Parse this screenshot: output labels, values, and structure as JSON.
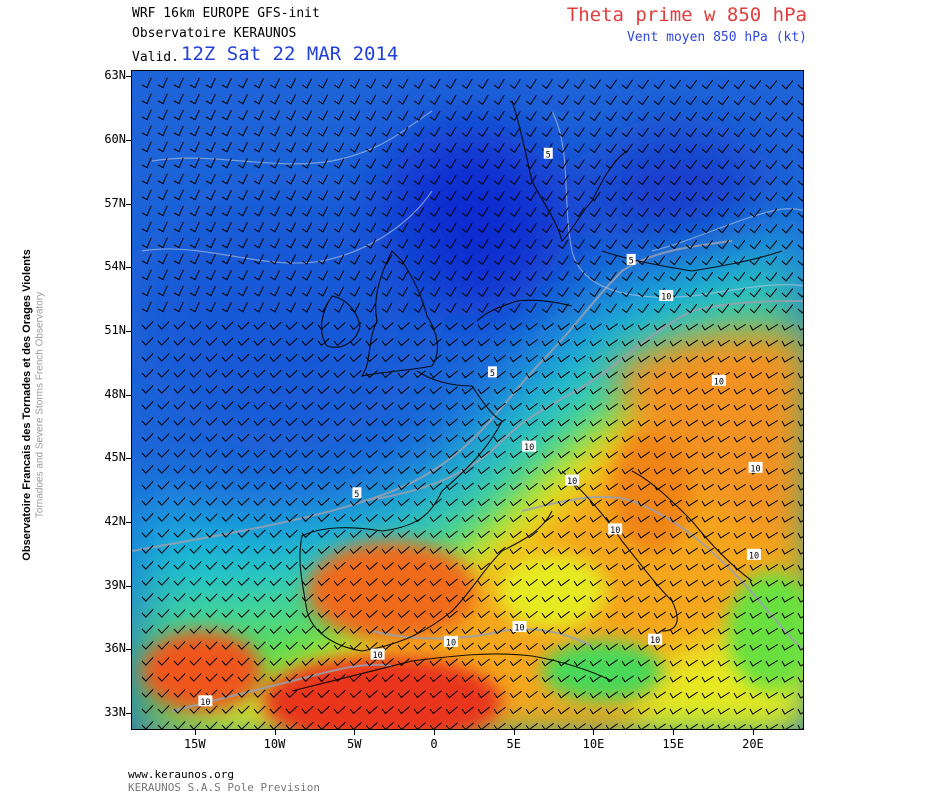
{
  "header": {
    "model": "WRF 16km EUROPE  GFS-init",
    "observatory": "Observatoire KERAUNOS",
    "valid_label": "Valid.",
    "valid_date": "12Z Sat 22 MAR 2014",
    "title": "Theta prime w 850 hPa",
    "subtitle": "Vent moyen 850 hPa (kt)"
  },
  "side_text": {
    "line1": "Observatoire Francais des Tornades et des Orages Violents",
    "line2": "Tornadoes and Severe Storms French Observatory"
  },
  "axes": {
    "lat_labels": [
      "63N",
      "60N",
      "57N",
      "54N",
      "51N",
      "48N",
      "45N",
      "42N",
      "39N",
      "36N",
      "33N"
    ],
    "lon_labels": [
      "15W",
      "10W",
      "5W",
      "0",
      "5E",
      "10E",
      "15E",
      "20E"
    ]
  },
  "contour_labels": [
    {
      "text": "5",
      "lon": 7.1,
      "lat": 59.4
    },
    {
      "text": "5",
      "lon": 12.3,
      "lat": 54.4
    },
    {
      "text": "5",
      "lon": 3.6,
      "lat": 49.1
    },
    {
      "text": "5",
      "lon": -4.9,
      "lat": 43.4
    },
    {
      "text": "10",
      "lon": 14.5,
      "lat": 52.7
    },
    {
      "text": "10",
      "lon": 17.8,
      "lat": 48.7
    },
    {
      "text": "10",
      "lon": 5.9,
      "lat": 45.6
    },
    {
      "text": "10",
      "lon": 20.1,
      "lat": 44.6
    },
    {
      "text": "10",
      "lon": 8.6,
      "lat": 44.0
    },
    {
      "text": "10",
      "lon": 11.3,
      "lat": 41.7
    },
    {
      "text": "10",
      "lon": 20.0,
      "lat": 40.5
    },
    {
      "text": "10",
      "lon": 5.3,
      "lat": 37.1
    },
    {
      "text": "10",
      "lon": 1.0,
      "lat": 36.4
    },
    {
      "text": "10",
      "lon": 13.8,
      "lat": 36.5
    },
    {
      "text": "10",
      "lon": -3.6,
      "lat": 35.8
    },
    {
      "text": "10",
      "lon": -14.4,
      "lat": 33.6
    }
  ],
  "colors": {
    "title": "#e23c3c",
    "subtitle": "#2f46e0",
    "valid_date": "#1f3fd8"
  },
  "footer": {
    "url": "www.keraunos.org",
    "company": "KERAUNOS S.A.S Pole Prevision"
  }
}
